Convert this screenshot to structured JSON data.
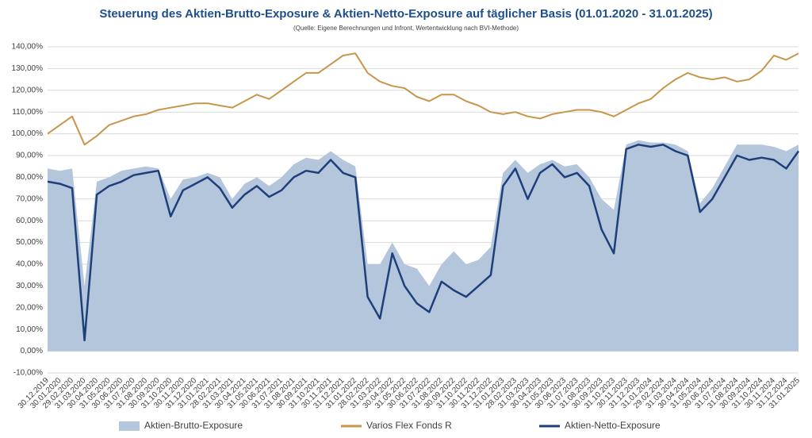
{
  "chart_data": {
    "type": "line",
    "title": "Steuerung des Aktien-Brutto-Exposure & Aktien-Netto-Exposure auf täglicher Basis (01.01.2020 - 31.01.2025)",
    "subtitle": "(Quelle: Eigene Berechnungen und Infront, Wertentwicklung nach BVI-Methode)",
    "categories": [
      "30.12.2019",
      "30.01.2020",
      "29.02.2020",
      "31.03.2020",
      "30.04.2020",
      "31.05.2020",
      "30.06.2020",
      "31.07.2020",
      "31.08.2020",
      "30.09.2020",
      "31.10.2020",
      "30.11.2020",
      "31.12.2020",
      "31.01.2021",
      "28.02.2021",
      "31.03.2021",
      "30.04.2021",
      "31.05.2021",
      "30.06.2021",
      "31.07.2021",
      "31.08.2021",
      "30.09.2021",
      "31.10.2021",
      "30.11.2021",
      "31.12.2021",
      "31.01.2022",
      "28.02.2022",
      "31.03.2022",
      "30.04.2022",
      "31.05.2022",
      "30.06.2022",
      "31.07.2022",
      "31.08.2022",
      "30.09.2022",
      "31.10.2022",
      "30.11.2022",
      "31.12.2022",
      "31.01.2023",
      "28.02.2023",
      "31.03.2023",
      "30.04.2023",
      "31.05.2023",
      "30.06.2023",
      "31.07.2023",
      "31.08.2023",
      "30.09.2023",
      "31.10.2023",
      "30.11.2023",
      "31.12.2023",
      "31.01.2024",
      "29.02.2024",
      "31.03.2024",
      "30.04.2024",
      "31.05.2024",
      "30.06.2024",
      "31.07.2024",
      "31.08.2024",
      "30.09.2024",
      "31.10.2024",
      "30.11.2024",
      "31.12.2024",
      "31.01.2025"
    ],
    "series": [
      {
        "name": "Aktien-Brutto-Exposure",
        "color": "#b3c6dc",
        "area": true,
        "values": [
          84,
          83,
          84,
          30,
          78,
          80,
          83,
          84,
          85,
          84,
          70,
          79,
          80,
          82,
          80,
          70,
          77,
          80,
          76,
          80,
          86,
          89,
          88,
          92,
          88,
          85,
          40,
          40,
          50,
          40,
          38,
          30,
          40,
          46,
          40,
          42,
          48,
          82,
          88,
          82,
          86,
          88,
          85,
          86,
          80,
          70,
          65,
          95,
          97,
          96,
          96,
          95,
          92,
          68,
          75,
          85,
          95,
          95,
          95,
          94,
          92,
          95
        ]
      },
      {
        "name": "Varios Flex Fonds R",
        "color": "#c8964b",
        "area": false,
        "values": [
          100,
          104,
          108,
          95,
          99,
          104,
          106,
          108,
          109,
          111,
          112,
          113,
          114,
          114,
          113,
          112,
          115,
          118,
          116,
          120,
          124,
          128,
          128,
          132,
          136,
          137,
          128,
          124,
          122,
          121,
          117,
          115,
          118,
          118,
          115,
          113,
          110,
          109,
          110,
          108,
          107,
          109,
          110,
          111,
          111,
          110,
          108,
          111,
          114,
          116,
          121,
          125,
          128,
          126,
          125,
          126,
          124,
          125,
          129,
          136,
          134,
          137
        ]
      },
      {
        "name": "Aktien-Netto-Exposure",
        "color": "#1f3f7a",
        "area": false,
        "values": [
          78,
          77,
          75,
          5,
          72,
          76,
          78,
          81,
          82,
          83,
          62,
          74,
          77,
          80,
          75,
          66,
          72,
          76,
          71,
          74,
          80,
          83,
          82,
          88,
          82,
          80,
          25,
          15,
          45,
          30,
          22,
          18,
          32,
          28,
          25,
          30,
          35,
          76,
          84,
          70,
          82,
          86,
          80,
          82,
          76,
          56,
          45,
          93,
          95,
          94,
          95,
          92,
          90,
          64,
          70,
          80,
          90,
          88,
          89,
          88,
          84,
          92
        ]
      }
    ],
    "ylim": [
      -10,
      140
    ],
    "yticks": [
      {
        "value": -10,
        "label": "-10,00%"
      },
      {
        "value": 0,
        "label": "0,00%"
      },
      {
        "value": 10,
        "label": "10,00%"
      },
      {
        "value": 20,
        "label": "20,00%"
      },
      {
        "value": 30,
        "label": "30,00%"
      },
      {
        "value": 40,
        "label": "40,00%"
      },
      {
        "value": 50,
        "label": "50,00%"
      },
      {
        "value": 60,
        "label": "60,00%"
      },
      {
        "value": 70,
        "label": "70,00%"
      },
      {
        "value": 80,
        "label": "80,00%"
      },
      {
        "value": 90,
        "label": "90,00%"
      },
      {
        "value": 100,
        "label": "100,00%"
      },
      {
        "value": 110,
        "label": "110,00%"
      },
      {
        "value": 120,
        "label": "120,00%"
      },
      {
        "value": 130,
        "label": "130,00%"
      },
      {
        "value": 140,
        "label": "140,00%"
      }
    ],
    "grid": true,
    "legend": "bottom"
  }
}
